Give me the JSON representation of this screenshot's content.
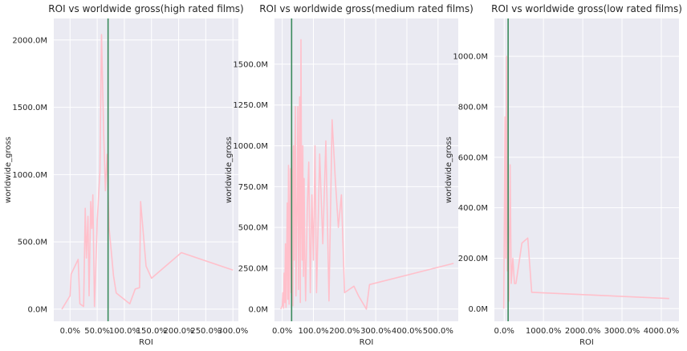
{
  "chart_data": [
    {
      "type": "line",
      "title": "ROI vs worldwide gross(high rated films)",
      "xlabel": "ROI",
      "ylabel": "worldwide_gross",
      "xlim": [
        -0.3,
        3.1
      ],
      "ylim": [
        -90,
        2160
      ],
      "xticks": [
        0,
        0.5,
        1.0,
        1.5,
        2.0,
        2.5,
        3.0
      ],
      "xtick_labels": [
        "0.0%",
        "50.0%",
        "100.0%",
        "150.0%",
        "200.0%",
        "250.0%",
        "300.0%"
      ],
      "yticks": [
        0,
        500,
        1000,
        1500,
        2000
      ],
      "ytick_labels": [
        "0.0M",
        "500.0M",
        "1000.0M",
        "1500.0M",
        "2000.0M"
      ],
      "vline": 0.7,
      "series": [
        {
          "color": "#ffc0cb",
          "x": [
            -0.15,
            0.0,
            0.02,
            0.15,
            0.18,
            0.25,
            0.28,
            0.3,
            0.33,
            0.35,
            0.38,
            0.4,
            0.42,
            0.45,
            0.48,
            0.5,
            0.55,
            0.58,
            0.62,
            0.65,
            0.68,
            0.72,
            0.8,
            0.85,
            1.1,
            1.2,
            1.28,
            1.3,
            1.4,
            1.5,
            2.05,
            3.0
          ],
          "y": [
            0,
            100,
            260,
            370,
            40,
            20,
            750,
            380,
            690,
            100,
            800,
            600,
            850,
            20,
            380,
            650,
            1020,
            2040,
            1300,
            880,
            1150,
            600,
            250,
            120,
            40,
            150,
            160,
            800,
            320,
            230,
            420,
            290
          ]
        }
      ]
    },
    {
      "type": "line",
      "title": "ROI vs worldwide gross(medium rated films)",
      "xlabel": "ROI",
      "ylabel": "worldwide_gross",
      "xlim": [
        -0.25,
        5.65
      ],
      "ylim": [
        -75,
        1780
      ],
      "xticks": [
        0,
        1,
        2,
        3,
        4,
        5
      ],
      "xtick_labels": [
        "0.0%",
        "100.0%",
        "200.0%",
        "300.0%",
        "400.0%",
        "500.0%"
      ],
      "yticks": [
        0,
        250,
        500,
        750,
        1000,
        1250,
        1500
      ],
      "ytick_labels": [
        "0.0M",
        "250.0M",
        "500.0M",
        "750.0M",
        "1000.0M",
        "1250.0M",
        "1500.0M"
      ],
      "vline": 0.3,
      "series": [
        {
          "color": "#ffc0cb",
          "x": [
            -0.05,
            0.0,
            0.02,
            0.04,
            0.06,
            0.08,
            0.1,
            0.12,
            0.14,
            0.16,
            0.18,
            0.2,
            0.22,
            0.24,
            0.26,
            0.28,
            0.3,
            0.32,
            0.34,
            0.36,
            0.38,
            0.4,
            0.42,
            0.44,
            0.46,
            0.48,
            0.5,
            0.52,
            0.54,
            0.56,
            0.58,
            0.6,
            0.62,
            0.64,
            0.66,
            0.68,
            0.7,
            0.72,
            0.75,
            0.8,
            0.85,
            0.9,
            0.95,
            1.0,
            1.05,
            1.1,
            1.15,
            1.2,
            1.3,
            1.4,
            1.5,
            1.6,
            1.7,
            1.8,
            1.9,
            2.0,
            2.3,
            2.45,
            2.7,
            2.8,
            5.5
          ],
          "y": [
            0,
            20,
            100,
            5,
            220,
            40,
            400,
            10,
            300,
            650,
            60,
            880,
            30,
            500,
            860,
            100,
            1100,
            700,
            20,
            1000,
            300,
            900,
            1240,
            80,
            500,
            700,
            1240,
            120,
            850,
            1300,
            40,
            1650,
            600,
            300,
            1000,
            200,
            800,
            400,
            50,
            600,
            900,
            100,
            700,
            300,
            1000,
            100,
            500,
            950,
            400,
            1030,
            50,
            1160,
            800,
            500,
            700,
            100,
            140,
            80,
            0,
            150,
            280
          ]
        }
      ]
    },
    {
      "type": "line",
      "title": "ROI vs worldwide gross(low rated films)",
      "xlabel": "ROI",
      "ylabel": "worldwide_gross",
      "xlim": [
        -250,
        4450
      ],
      "ylim": [
        -50,
        1150
      ],
      "xticks": [
        0,
        1000,
        2000,
        3000,
        4000
      ],
      "xtick_labels": [
        "0.0%",
        "1000.0%",
        "2000.0%",
        "3000.0%",
        "4000.0%"
      ],
      "yticks": [
        0,
        200,
        400,
        600,
        800,
        1000
      ],
      "ytick_labels": [
        "0.0M",
        "200.0M",
        "400.0M",
        "600.0M",
        "800.0M",
        "1000.0M"
      ],
      "vline": 100,
      "series": [
        {
          "color": "#ffc0cb",
          "x": [
            -10,
            20,
            40,
            60,
            80,
            100,
            120,
            150,
            180,
            220,
            260,
            300,
            450,
            600,
            700,
            4200
          ],
          "y": [
            0,
            760,
            200,
            1000,
            150,
            400,
            30,
            570,
            100,
            200,
            100,
            100,
            260,
            280,
            65,
            40
          ]
        }
      ]
    }
  ],
  "colors": {
    "series": "#ffc0cb",
    "vline": "#3a8a5c",
    "background": "#eaeaf2",
    "grid": "#ffffff"
  }
}
